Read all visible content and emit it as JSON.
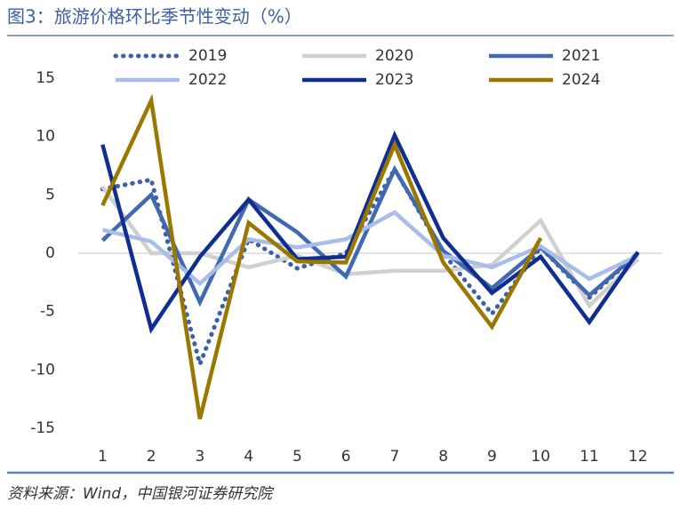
{
  "chart_data": {
    "type": "line",
    "title": "图3：旅游价格环比季节性变动（%）",
    "source": "资料来源：Wind，中国银河证券研究院",
    "categories": [
      "1",
      "2",
      "3",
      "4",
      "5",
      "6",
      "7",
      "8",
      "9",
      "10",
      "11",
      "12"
    ],
    "series": [
      {
        "name": "2019",
        "color": "#3b5fae",
        "style": "dotted",
        "values": [
          5.5,
          6.3,
          -9.5,
          1.2,
          -1.3,
          0,
          7.2,
          0,
          -5.2,
          0.5,
          -3.8,
          0
        ]
      },
      {
        "name": "2020",
        "color": "#d0d0d0",
        "style": "solid",
        "values": [
          5.7,
          0,
          0,
          -1.2,
          -0.2,
          -1.8,
          -1.5,
          -1.5,
          -1,
          2.8,
          -4.5,
          -0.5
        ]
      },
      {
        "name": "2021",
        "color": "#4169b2",
        "style": "solid",
        "values": [
          1.1,
          5.0,
          -4.2,
          4.6,
          1.8,
          -2.0,
          7.2,
          0.2,
          -3.0,
          0.5,
          -3.6,
          0
        ]
      },
      {
        "name": "2022",
        "color": "#a9bde6",
        "style": "solid",
        "values": [
          2.0,
          1.0,
          -2.6,
          1.2,
          0.5,
          1.2,
          3.5,
          -0.2,
          -1.2,
          0.6,
          -2.2,
          -0.2
        ]
      },
      {
        "name": "2023",
        "color": "#0f2e8f",
        "style": "solid",
        "values": [
          9.3,
          -6.5,
          -0.3,
          4.6,
          -0.5,
          -0.3,
          10.1,
          1.3,
          -3.4,
          -0.3,
          -5.9,
          0.1
        ]
      },
      {
        "name": "2024",
        "color": "#9a7800",
        "style": "solid",
        "values": [
          4.1,
          13.1,
          -14.2,
          2.6,
          -0.7,
          -0.8,
          9.3,
          -0.8,
          -6.3,
          1.3,
          null,
          null
        ]
      }
    ],
    "ylim": [
      -15,
      15
    ],
    "yticks": [
      -15,
      -10,
      -5,
      0,
      5,
      10,
      15
    ],
    "grid": false,
    "legend": "top"
  }
}
